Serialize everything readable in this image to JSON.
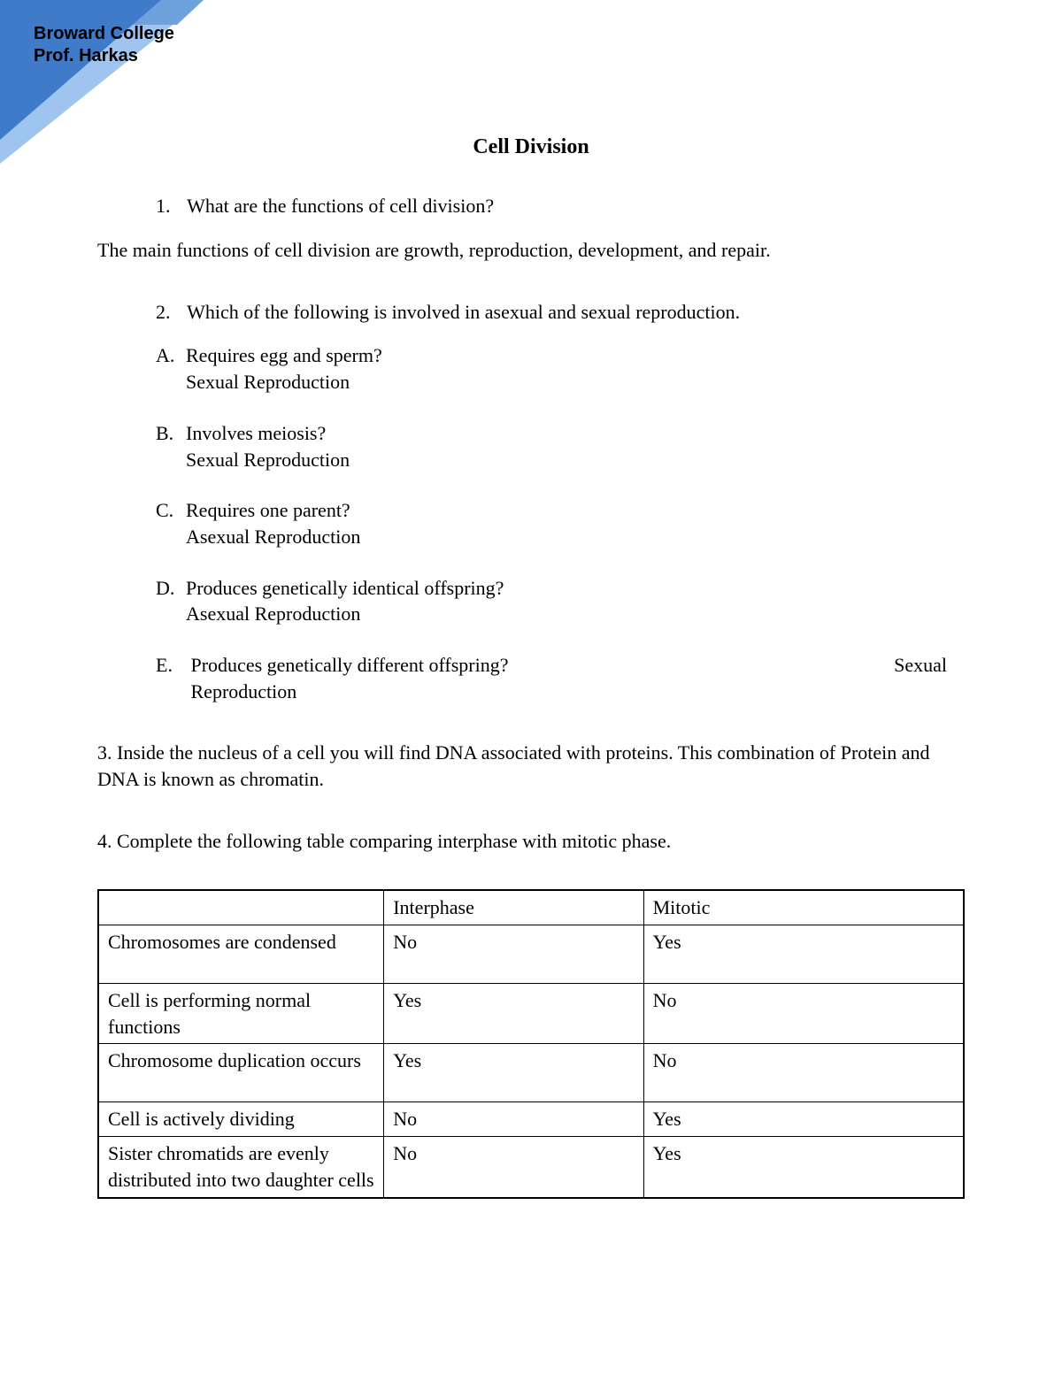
{
  "header": {
    "line1": "Broward College",
    "line2": "Prof. Harkas",
    "graphic": {
      "fill_dark": "#3f7bc9",
      "fill_light": "#9ec4ef",
      "stripe": "#6ea2dd"
    }
  },
  "title": "Cell Division",
  "q1": {
    "num": "1.",
    "text": "What are the functions of cell division?",
    "answer": "The main functions of cell division are growth, reproduction, development, and repair."
  },
  "q2": {
    "num": "2.",
    "text": "Which of the following is involved in asexual and sexual reproduction.",
    "items": [
      {
        "letter": "A.",
        "q": "Requires egg and sperm?",
        "a": "Sexual Reproduction"
      },
      {
        "letter": "B.",
        "q": "Involves meiosis?",
        "a": "Sexual Reproduction"
      },
      {
        "letter": "C.",
        "q": "Requires one parent?",
        "a": "Asexual Reproduction"
      },
      {
        "letter": "D.",
        "q": "Produces genetically identical offspring?",
        "a": "Asexual Reproduction"
      }
    ],
    "itemE": {
      "letter": "E.",
      "q": "Produces genetically different offspring?",
      "a_right": "Sexual",
      "a_below": "Reproduction"
    }
  },
  "q3": {
    "text": "3. Inside the nucleus of a cell you will find DNA associated with proteins. This combination of Protein and DNA is known as chromatin."
  },
  "q4": {
    "text": "4. Complete the following table comparing interphase with mitotic phase."
  },
  "table": {
    "columns": [
      "",
      "Interphase",
      "Mitotic"
    ],
    "rows": [
      {
        "label": "Chromosomes are condensed",
        "inter": "No",
        "mito": "Yes",
        "tall": true
      },
      {
        "label": "Cell is performing normal functions",
        "inter": "Yes",
        "mito": "No",
        "tall": true
      },
      {
        "label": "Chromosome duplication occurs",
        "inter": "Yes",
        "mito": "No",
        "tall": true
      },
      {
        "label": "Cell is actively dividing",
        "inter": "No",
        "mito": "Yes",
        "tall": false
      },
      {
        "label": "Sister chromatids are evenly distributed into two daughter cells",
        "inter": "No",
        "mito": "Yes",
        "tall": false
      }
    ],
    "border_color": "#000000",
    "background_color": "#ffffff"
  },
  "typography": {
    "body_font": "Times New Roman",
    "body_size_pt": 16,
    "title_size_pt": 18,
    "header_font": "Arial",
    "header_size_pt": 15
  }
}
